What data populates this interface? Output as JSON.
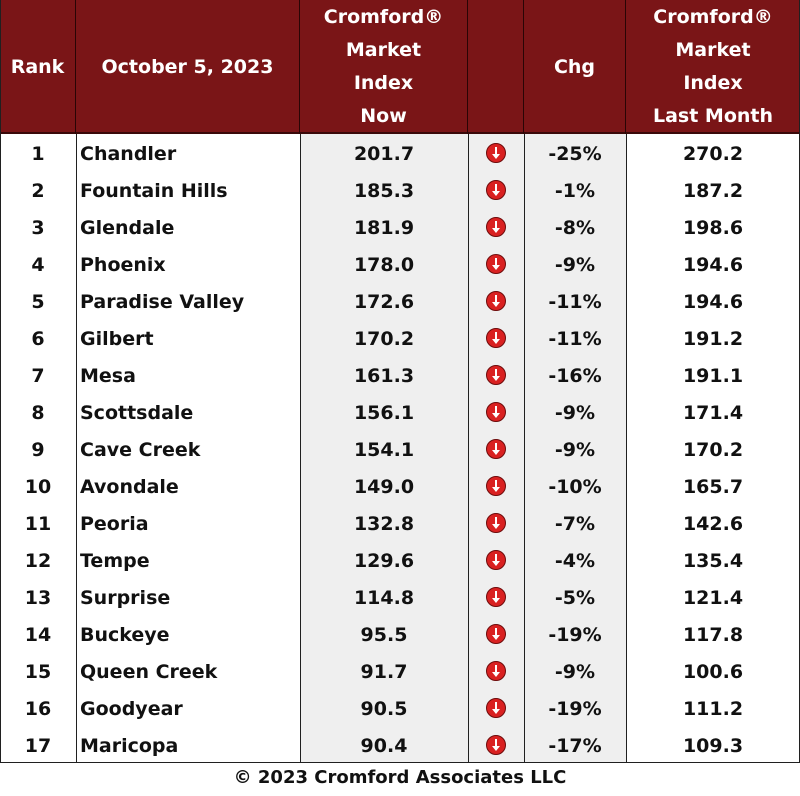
{
  "table": {
    "headers": {
      "rank": "Rank",
      "date": "October 5, 2023",
      "now": [
        "Cromford®",
        "Market",
        "Index",
        "Now"
      ],
      "chg": "Chg",
      "last": [
        "Cromford®",
        "Market",
        "Index",
        "Last Month"
      ]
    },
    "rows": [
      {
        "rank": "1",
        "city": "Chandler",
        "now": "201.7",
        "chg": "-25%",
        "last": "270.2",
        "direction": "down"
      },
      {
        "rank": "2",
        "city": "Fountain Hills",
        "now": "185.3",
        "chg": "-1%",
        "last": "187.2",
        "direction": "down"
      },
      {
        "rank": "3",
        "city": "Glendale",
        "now": "181.9",
        "chg": "-8%",
        "last": "198.6",
        "direction": "down"
      },
      {
        "rank": "4",
        "city": "Phoenix",
        "now": "178.0",
        "chg": "-9%",
        "last": "194.6",
        "direction": "down"
      },
      {
        "rank": "5",
        "city": "Paradise Valley",
        "now": "172.6",
        "chg": "-11%",
        "last": "194.6",
        "direction": "down"
      },
      {
        "rank": "6",
        "city": "Gilbert",
        "now": "170.2",
        "chg": "-11%",
        "last": "191.2",
        "direction": "down"
      },
      {
        "rank": "7",
        "city": "Mesa",
        "now": "161.3",
        "chg": "-16%",
        "last": "191.1",
        "direction": "down"
      },
      {
        "rank": "8",
        "city": "Scottsdale",
        "now": "156.1",
        "chg": "-9%",
        "last": "171.4",
        "direction": "down"
      },
      {
        "rank": "9",
        "city": "Cave Creek",
        "now": "154.1",
        "chg": "-9%",
        "last": "170.2",
        "direction": "down"
      },
      {
        "rank": "10",
        "city": "Avondale",
        "now": "149.0",
        "chg": "-10%",
        "last": "165.7",
        "direction": "down"
      },
      {
        "rank": "11",
        "city": "Peoria",
        "now": "132.8",
        "chg": "-7%",
        "last": "142.6",
        "direction": "down"
      },
      {
        "rank": "12",
        "city": "Tempe",
        "now": "129.6",
        "chg": "-4%",
        "last": "135.4",
        "direction": "down"
      },
      {
        "rank": "13",
        "city": "Surprise",
        "now": "114.8",
        "chg": "-5%",
        "last": "121.4",
        "direction": "down"
      },
      {
        "rank": "14",
        "city": "Buckeye",
        "now": "95.5",
        "chg": "-19%",
        "last": "117.8",
        "direction": "down"
      },
      {
        "rank": "15",
        "city": "Queen Creek",
        "now": "91.7",
        "chg": "-9%",
        "last": "100.6",
        "direction": "down"
      },
      {
        "rank": "16",
        "city": "Goodyear",
        "now": "90.5",
        "chg": "-19%",
        "last": "111.2",
        "direction": "down"
      },
      {
        "rank": "17",
        "city": "Maricopa",
        "now": "90.4",
        "chg": "-17%",
        "last": "109.3",
        "direction": "down"
      }
    ],
    "icon": "down-arrow-icon"
  },
  "footer": "© 2023 Cromford Associates LLC",
  "colors": {
    "header_bg": "#7a1517",
    "header_text": "#ffffff",
    "row_bg_gray": "#efefef",
    "row_bg_white": "#ffffff",
    "arrow_red": "#d92121"
  },
  "chart_data": {
    "type": "table",
    "title": "",
    "columns": [
      "Rank",
      "October 5, 2023",
      "Cromford® Market Index Now",
      "",
      "Chg",
      "Cromford® Market Index Last Month"
    ],
    "rows": [
      [
        1,
        "Chandler",
        201.7,
        "down",
        "-25%",
        270.2
      ],
      [
        2,
        "Fountain Hills",
        185.3,
        "down",
        "-1%",
        187.2
      ],
      [
        3,
        "Glendale",
        181.9,
        "down",
        "-8%",
        198.6
      ],
      [
        4,
        "Phoenix",
        178.0,
        "down",
        "-9%",
        194.6
      ],
      [
        5,
        "Paradise Valley",
        172.6,
        "down",
        "-11%",
        194.6
      ],
      [
        6,
        "Gilbert",
        170.2,
        "down",
        "-11%",
        191.2
      ],
      [
        7,
        "Mesa",
        161.3,
        "down",
        "-16%",
        191.1
      ],
      [
        8,
        "Scottsdale",
        156.1,
        "down",
        "-9%",
        171.4
      ],
      [
        9,
        "Cave Creek",
        154.1,
        "down",
        "-9%",
        170.2
      ],
      [
        10,
        "Avondale",
        149.0,
        "down",
        "-10%",
        165.7
      ],
      [
        11,
        "Peoria",
        132.8,
        "down",
        "-7%",
        142.6
      ],
      [
        12,
        "Tempe",
        129.6,
        "down",
        "-4%",
        135.4
      ],
      [
        13,
        "Surprise",
        114.8,
        "down",
        "-5%",
        121.4
      ],
      [
        14,
        "Buckeye",
        95.5,
        "down",
        "-19%",
        117.8
      ],
      [
        15,
        "Queen Creek",
        91.7,
        "down",
        "-9%",
        100.6
      ],
      [
        16,
        "Goodyear",
        90.5,
        "down",
        "-19%",
        111.2
      ],
      [
        17,
        "Maricopa",
        90.4,
        "down",
        "-17%",
        109.3
      ]
    ]
  }
}
